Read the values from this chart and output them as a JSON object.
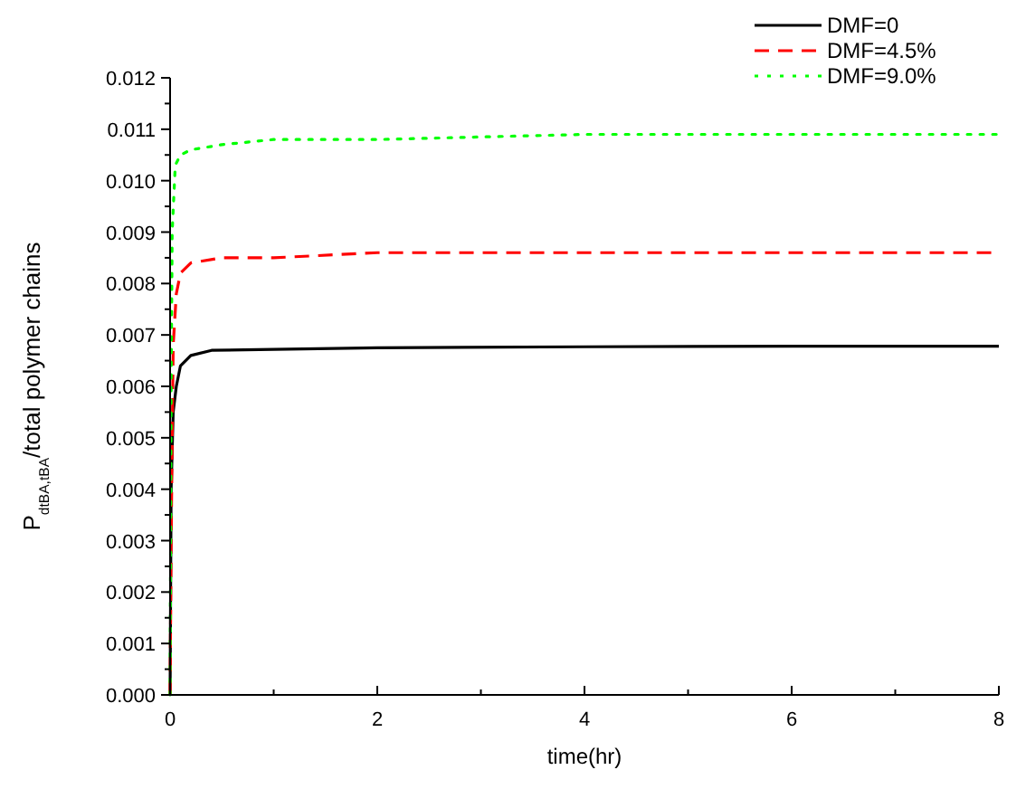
{
  "chart_data": {
    "type": "line",
    "xlabel": "time(hr)",
    "ylabel": "P$_{dtBA,tBA}$/total polymer chains",
    "xlim": [
      0,
      8
    ],
    "xticks": [
      0,
      {
        "value": 1,
        "label": null
      },
      2,
      {
        "value": 3,
        "label": null
      },
      4,
      {
        "value": 5,
        "label": null
      },
      6,
      {
        "value": 7,
        "label": null
      },
      8
    ],
    "ylim": [
      0,
      0.012
    ],
    "yticks": [
      "0.000",
      0.001,
      0.002,
      0.003,
      0.004,
      0.005,
      0.006,
      0.007,
      0.008,
      0.009,
      "0.010",
      0.011,
      0.012
    ],
    "grid": false,
    "legend": "top right",
    "series": [
      {
        "name": "DMF=0",
        "color": "#000000",
        "line_style": "solid",
        "x": [
          0,
          0.01,
          0.03,
          0.06,
          0.1,
          0.2,
          0.4,
          1,
          2,
          4,
          6,
          8
        ],
        "values": [
          0,
          0.004,
          0.0055,
          0.006,
          0.0064,
          0.0066,
          0.0067,
          0.00672,
          0.00675,
          0.00677,
          0.00678,
          0.00678
        ]
      },
      {
        "name": "DMF=4.5%",
        "color": "#ff0000",
        "line_style": "dashed",
        "x": [
          0,
          0.01,
          0.03,
          0.06,
          0.1,
          0.2,
          0.5,
          1,
          2,
          4,
          8
        ],
        "values": [
          0,
          0.003,
          0.0068,
          0.0078,
          0.0082,
          0.0084,
          0.0085,
          0.0085,
          0.0086,
          0.0086,
          0.0086
        ]
      },
      {
        "name": "DMF=9.0%",
        "color": "#00ff00",
        "line_style": "dotted",
        "x": [
          0,
          0.01,
          0.02,
          0.05,
          0.1,
          0.2,
          0.5,
          1,
          2,
          4,
          8
        ],
        "values": [
          0,
          0.006,
          0.009,
          0.0103,
          0.0105,
          0.0106,
          0.0107,
          0.0108,
          0.0108,
          0.0109,
          0.0109
        ]
      }
    ]
  }
}
